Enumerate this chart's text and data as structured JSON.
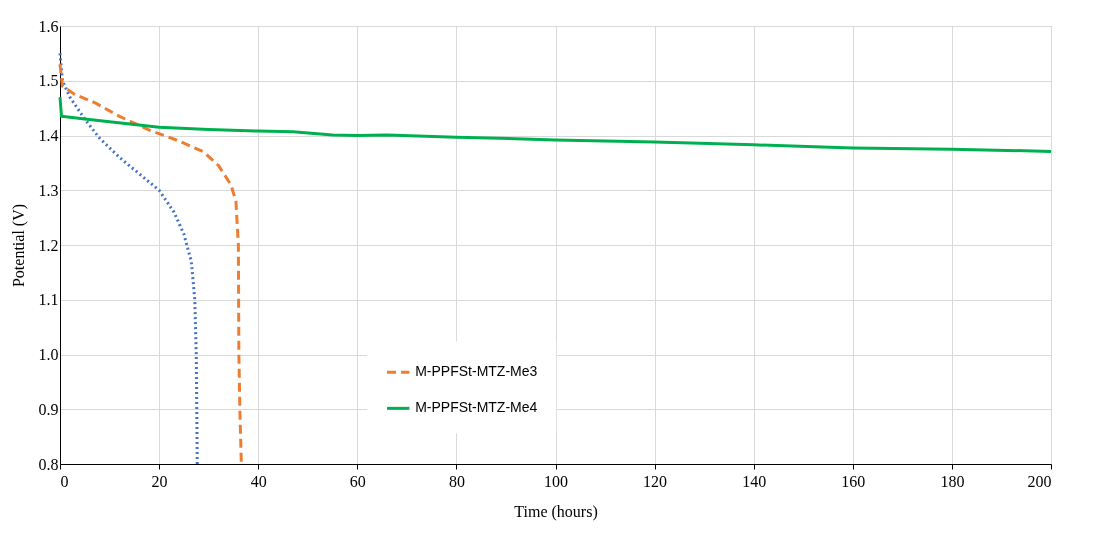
{
  "chart_data": {
    "type": "line",
    "xlabel": "Time (hours)",
    "ylabel": "Potential (V)",
    "xlim": [
      0,
      200
    ],
    "xticks": [
      0,
      20,
      40,
      60,
      80,
      100,
      120,
      140,
      160,
      180,
      200
    ],
    "ylim": [
      0.8,
      1.6
    ],
    "yticks": [
      0.8,
      0.9,
      {
        "value": 1.0,
        "label": "1.0"
      },
      1.1,
      1.2,
      1.3,
      1.4,
      1.5,
      1.6
    ],
    "grid": true,
    "legend": "bottom",
    "marker": "none",
    "series": [
      {
        "color": "#4472c4",
        "line_style": "dotted",
        "x": [
          0,
          0.5,
          2,
          5,
          8,
          12,
          16,
          20,
          23,
          25,
          26.5,
          27.2,
          27.5,
          27.6,
          27.7
        ],
        "values": [
          1.55,
          1.5,
          1.47,
          1.43,
          1.395,
          1.36,
          1.33,
          1.3,
          1.26,
          1.22,
          1.17,
          1.1,
          1.0,
          0.9,
          0.8
        ]
      },
      {
        "name": "M-PPFSt-MTZ-Me3",
        "color": "#ed7d31",
        "line_style": "dashed",
        "x": [
          0,
          0.5,
          3,
          7,
          12,
          18,
          24,
          29,
          32,
          34.5,
          35.5,
          36,
          36.1,
          36.3,
          36.6
        ],
        "values": [
          1.53,
          1.49,
          1.475,
          1.46,
          1.435,
          1.41,
          1.39,
          1.37,
          1.345,
          1.31,
          1.28,
          1.2,
          1.0,
          0.9,
          0.8
        ]
      },
      {
        "name": "M-PPFSt-MTZ-Me4",
        "color": "#00b050",
        "line_style": "solid",
        "x": [
          0,
          0.3,
          5,
          20,
          30,
          40,
          47,
          55,
          60,
          66,
          80,
          100,
          120,
          140,
          160,
          180,
          200
        ],
        "values": [
          1.47,
          1.435,
          1.43,
          1.415,
          1.411,
          1.408,
          1.407,
          1.401,
          1.4,
          1.401,
          1.397,
          1.392,
          1.388,
          1.383,
          1.377,
          1.375,
          1.371
        ]
      }
    ]
  }
}
